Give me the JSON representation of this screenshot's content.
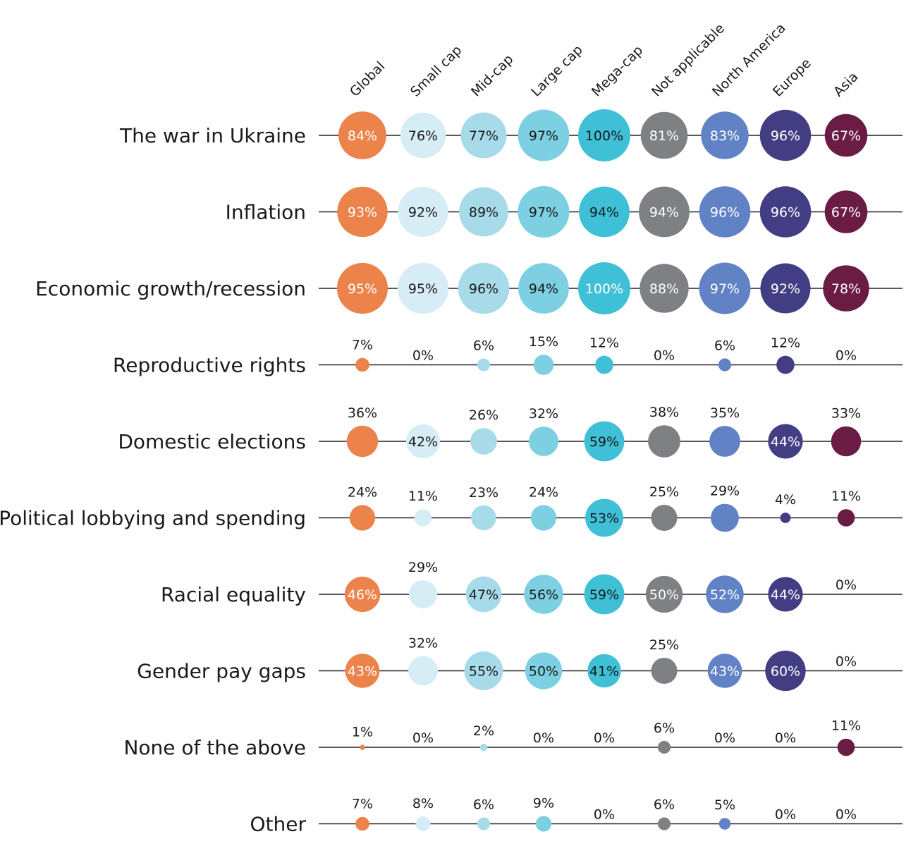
{
  "chart_data": {
    "type": "bubble-matrix",
    "columns": [
      "Global",
      "Small cap",
      "Mid-cap",
      "Large cap",
      "Mega-cap",
      "Not applicable",
      "North America",
      "Europe",
      "Asia"
    ],
    "column_colors": [
      "#ec834b",
      "#d6edf5",
      "#a8dbe9",
      "#7dd0e1",
      "#3fc0d6",
      "#7f8083",
      "#6182c4",
      "#433e84",
      "#6a1c45"
    ],
    "rows": [
      {
        "label": "The war in Ukraine",
        "values": [
          84,
          76,
          77,
          97,
          100,
          81,
          83,
          96,
          67
        ]
      },
      {
        "label": "Inflation",
        "values": [
          93,
          92,
          89,
          97,
          94,
          94,
          96,
          96,
          67
        ]
      },
      {
        "label": "Economic growth/recession",
        "values": [
          95,
          95,
          96,
          94,
          100,
          88,
          97,
          92,
          78
        ]
      },
      {
        "label": "Reproductive rights",
        "values": [
          7,
          0,
          6,
          15,
          12,
          0,
          6,
          12,
          0
        ]
      },
      {
        "label": "Domestic elections",
        "values": [
          36,
          42,
          26,
          32,
          59,
          38,
          35,
          44,
          33
        ]
      },
      {
        "label": "Political lobbying and spending",
        "values": [
          24,
          11,
          23,
          24,
          53,
          25,
          29,
          4,
          11
        ]
      },
      {
        "label": "Racial equality",
        "values": [
          46,
          29,
          47,
          56,
          59,
          50,
          52,
          44,
          0
        ]
      },
      {
        "label": "Gender pay gaps",
        "values": [
          43,
          32,
          55,
          50,
          41,
          25,
          43,
          60,
          0
        ]
      },
      {
        "label": "None of the above",
        "values": [
          1,
          0,
          2,
          0,
          0,
          6,
          0,
          0,
          11
        ]
      },
      {
        "label": "Other",
        "values": [
          7,
          8,
          6,
          9,
          0,
          6,
          5,
          0,
          0
        ]
      }
    ],
    "value_suffix": "%",
    "inside_label_rule": [
      [
        1,
        1,
        1,
        1,
        1,
        1,
        1,
        1,
        1
      ],
      [
        1,
        1,
        1,
        1,
        1,
        1,
        1,
        1,
        1
      ],
      [
        1,
        1,
        1,
        1,
        1,
        1,
        1,
        1,
        1
      ],
      [
        0,
        0,
        0,
        0,
        0,
        0,
        0,
        0,
        0
      ],
      [
        0,
        1,
        0,
        0,
        1,
        0,
        0,
        1,
        0
      ],
      [
        0,
        0,
        0,
        0,
        1,
        0,
        0,
        0,
        0
      ],
      [
        1,
        0,
        1,
        1,
        1,
        1,
        1,
        1,
        0
      ],
      [
        1,
        0,
        1,
        1,
        1,
        0,
        1,
        1,
        0
      ],
      [
        0,
        0,
        0,
        0,
        0,
        0,
        0,
        0,
        0
      ],
      [
        0,
        0,
        0,
        0,
        0,
        0,
        0,
        0,
        0
      ]
    ],
    "inside_label_text_color": [
      [
        "#ffffff",
        "#1a1a1a",
        "#1a1a1a",
        "#1a1a1a",
        "#1a1a1a",
        "#ffffff",
        "#ffffff",
        "#ffffff",
        "#ffffff"
      ],
      [
        "#ffffff",
        "#1a1a1a",
        "#1a1a1a",
        "#1a1a1a",
        "#1a1a1a",
        "#ffffff",
        "#ffffff",
        "#ffffff",
        "#ffffff"
      ],
      [
        "#ffffff",
        "#1a1a1a",
        "#1a1a1a",
        "#1a1a1a",
        "#ffffff",
        "#ffffff",
        "#ffffff",
        "#ffffff",
        "#ffffff"
      ],
      [
        "#1a1a1a",
        "#1a1a1a",
        "#1a1a1a",
        "#1a1a1a",
        "#1a1a1a",
        "#1a1a1a",
        "#1a1a1a",
        "#1a1a1a",
        "#1a1a1a"
      ],
      [
        "#1a1a1a",
        "#1a1a1a",
        "#1a1a1a",
        "#1a1a1a",
        "#1a1a1a",
        "#1a1a1a",
        "#1a1a1a",
        "#ffffff",
        "#1a1a1a"
      ],
      [
        "#1a1a1a",
        "#1a1a1a",
        "#1a1a1a",
        "#1a1a1a",
        "#1a1a1a",
        "#1a1a1a",
        "#1a1a1a",
        "#1a1a1a",
        "#1a1a1a"
      ],
      [
        "#ffffff",
        "#1a1a1a",
        "#1a1a1a",
        "#1a1a1a",
        "#1a1a1a",
        "#ffffff",
        "#ffffff",
        "#ffffff",
        "#1a1a1a"
      ],
      [
        "#ffffff",
        "#1a1a1a",
        "#1a1a1a",
        "#1a1a1a",
        "#1a1a1a",
        "#1a1a1a",
        "#ffffff",
        "#ffffff",
        "#1a1a1a"
      ],
      [
        "#1a1a1a",
        "#1a1a1a",
        "#1a1a1a",
        "#1a1a1a",
        "#1a1a1a",
        "#1a1a1a",
        "#1a1a1a",
        "#1a1a1a",
        "#1a1a1a"
      ],
      [
        "#1a1a1a",
        "#1a1a1a",
        "#1a1a1a",
        "#1a1a1a",
        "#1a1a1a",
        "#1a1a1a",
        "#1a1a1a",
        "#1a1a1a",
        "#1a1a1a"
      ]
    ]
  }
}
